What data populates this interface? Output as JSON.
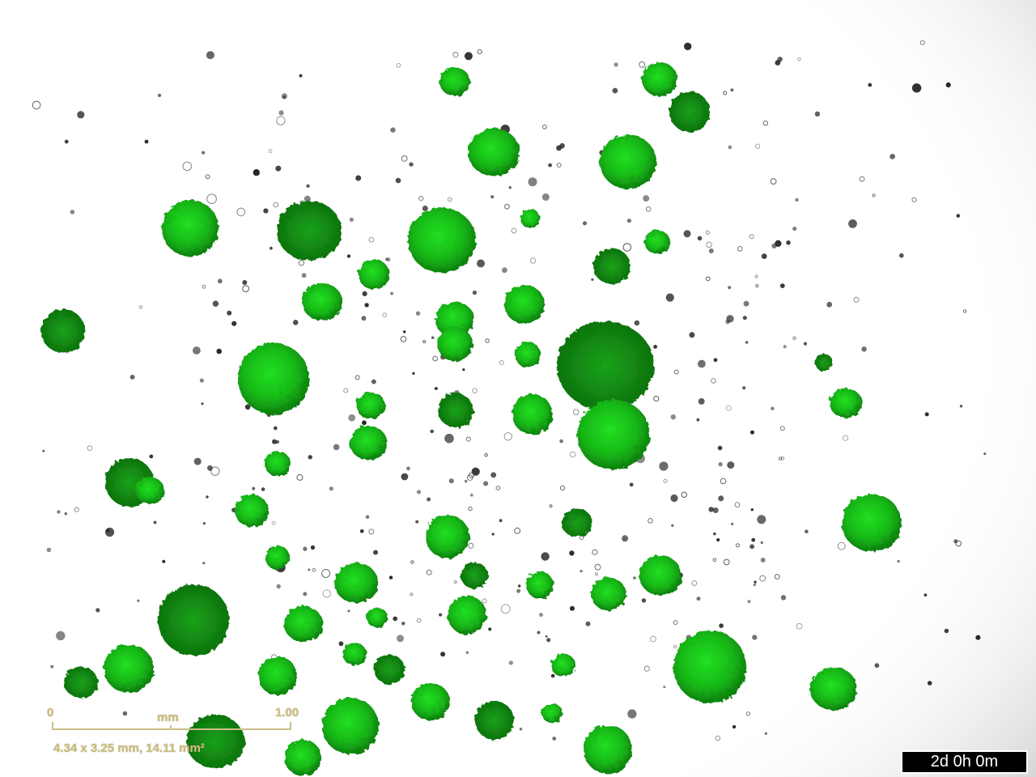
{
  "image": {
    "description_colors": {
      "background": "#ffffff",
      "spheroid_bright": "#1ed81e",
      "spheroid_dark": "#0a7a0a",
      "debris": "#2b2b2b",
      "scalebar": "#cdbf85"
    }
  },
  "scalebar": {
    "start_label": "0",
    "unit_label": "mm",
    "end_label": "1.00",
    "field_label": "4.34 x 3.25 mm, 14.11 mm²"
  },
  "timestamp": "2d 0h 0m"
}
